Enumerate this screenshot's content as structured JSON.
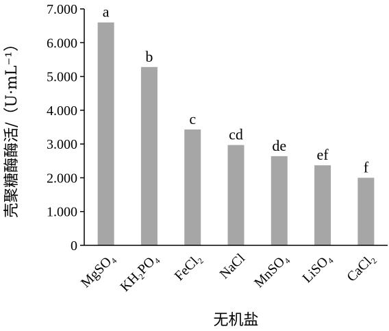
{
  "chart_data": {
    "type": "bar",
    "xlabel": "无机盐",
    "ylabel": "壳聚糖酶酶活/（U·mL⁻¹）",
    "ylim": [
      0,
      7
    ],
    "ytick_labels": [
      "0",
      "1.000",
      "2.000",
      "3.000",
      "4.000",
      "5.000",
      "6.000",
      "7.000"
    ],
    "grid": false,
    "bar_color": "#a6a6a6",
    "categories": [
      "MgSO₄",
      "KH₂PO₄",
      "FeCl₂",
      "NaCl",
      "MnSO₄",
      "LiSO₄",
      "CaCl₂"
    ],
    "values": [
      6.6,
      5.28,
      3.43,
      2.97,
      2.64,
      2.37,
      2.0
    ],
    "significance_labels": [
      "a",
      "b",
      "c",
      "cd",
      "de",
      "ef",
      "f"
    ]
  }
}
